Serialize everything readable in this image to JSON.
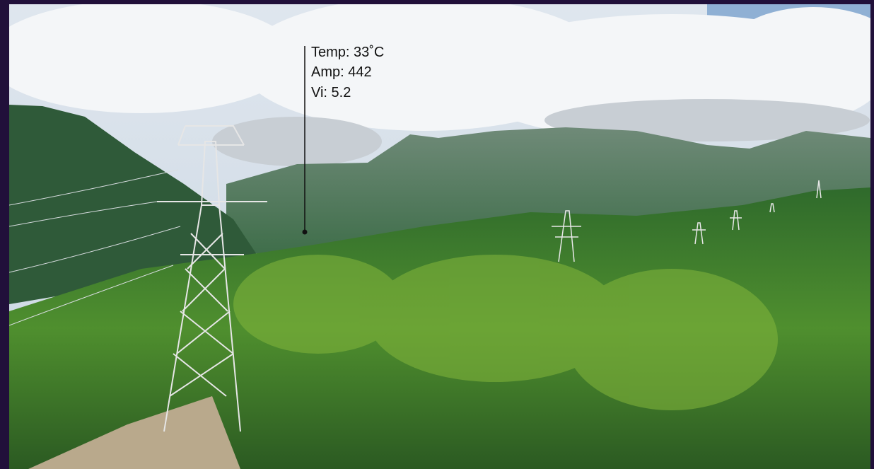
{
  "overlay": {
    "lines": [
      "Temp: 33˚C",
      "Amp: 442",
      "Vi: 5.2"
    ]
  }
}
